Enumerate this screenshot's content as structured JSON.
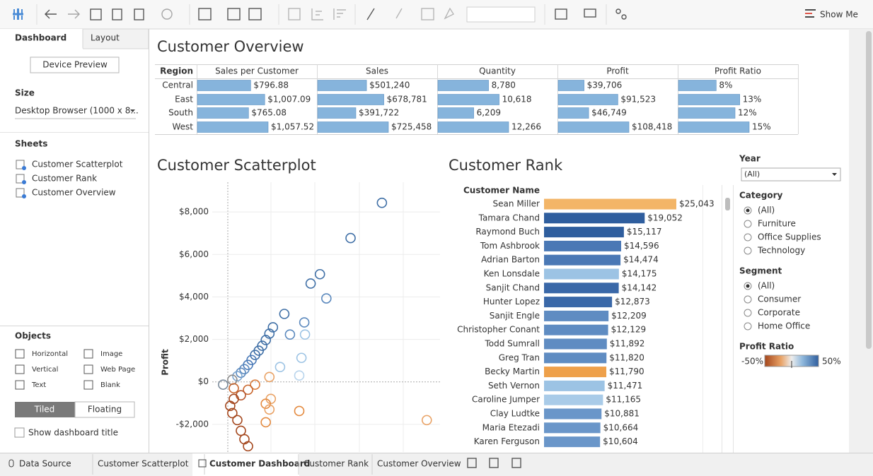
{
  "toolbar": {
    "show_me": "Show Me"
  },
  "sidebar": {
    "tabs": [
      "Dashboard",
      "Layout"
    ],
    "device_preview": "Device Preview",
    "size_label": "Size",
    "size_value": "Desktop Browser (1000 x 8...",
    "sheets_label": "Sheets",
    "sheets": [
      "Customer Scatterplot",
      "Customer Rank",
      "Customer Overview"
    ],
    "objects_label": "Objects",
    "objects": [
      "Horizontal",
      "Image",
      "Vertical",
      "Web Page",
      "Text",
      "Blank"
    ],
    "layout_modes": [
      "Tiled",
      "Floating"
    ],
    "show_title": "Show dashboard title"
  },
  "dashboard": {
    "overview": {
      "title": "Customer Overview",
      "row_header": "Region",
      "categories": [
        "Central",
        "East",
        "South",
        "West"
      ],
      "series": [
        {
          "name": "Sales per Customer",
          "values": [
            796.88,
            1007.09,
            765.08,
            1057.52
          ],
          "value_labels": [
            "$796.88",
            "$1,007.09",
            "$765.08",
            "$1,057.52"
          ]
        },
        {
          "name": "Sales",
          "values": [
            501240,
            678781,
            391722,
            725458
          ],
          "value_labels": [
            "$501,240",
            "$678,781",
            "$391,722",
            "$725,458"
          ]
        },
        {
          "name": "Quantity",
          "values": [
            8780,
            10618,
            6209,
            12266
          ],
          "value_labels": [
            "8,780",
            "10,618",
            "6,209",
            "12,266"
          ]
        },
        {
          "name": "Profit",
          "values": [
            39706,
            91523,
            46749,
            108418
          ],
          "value_labels": [
            "$39,706",
            "$91,523",
            "$46,749",
            "$108,418"
          ]
        },
        {
          "name": "Profit Ratio",
          "values": [
            8,
            13,
            12,
            15
          ],
          "value_labels": [
            "8%",
            "13%",
            "12%",
            "15%"
          ]
        }
      ],
      "color": "#86b4dc"
    },
    "scatterplot": {
      "type": "scatter",
      "title": "Customer Scatterplot",
      "y_label": "Profit",
      "ylim": [
        -3300,
        9400
      ],
      "yticks": [
        {
          "value": -2000,
          "label": "-$2,000"
        },
        {
          "value": 0,
          "label": "$0"
        },
        {
          "value": 2000,
          "label": "$2,000"
        },
        {
          "value": 4000,
          "label": "$4,000"
        },
        {
          "value": 6000,
          "label": "$6,000"
        },
        {
          "value": 8000,
          "label": "$8,000"
        }
      ],
      "xlim": [
        -7800,
        24000
      ],
      "x": [
        17420,
        13870,
        10400,
        9350,
        11130,
        6370,
        8630,
        7010,
        8710,
        5080,
        4680,
        4270,
        3870,
        3470,
        3060,
        2660,
        2260,
        1850,
        1450,
        1050,
        480,
        8310,
        8060,
        5890,
        4680,
        3060,
        2260,
        1450,
        4840,
        4270,
        4680,
        650,
        240,
        480,
        1050,
        4270,
        1450,
        1850,
        2260,
        8060,
        22500,
        -560,
        650
      ],
      "y": [
        8430,
        6770,
        5070,
        4630,
        3930,
        3200,
        2800,
        2230,
        2230,
        2570,
        2270,
        1970,
        1700,
        1470,
        1270,
        1030,
        800,
        600,
        430,
        270,
        100,
        1130,
        300,
        700,
        230,
        -130,
        -370,
        -630,
        -800,
        -1030,
        -1300,
        -800,
        -1130,
        -1470,
        -1800,
        -1900,
        -2300,
        -2700,
        -3030,
        -1370,
        -1800,
        -130,
        -300
      ],
      "colors": [
        "#3f6fa6",
        "#3f6fa6",
        "#3f6fa6",
        "#3f6fa6",
        "#5a88bd",
        "#3f6fa6",
        "#5a88bd",
        "#5a88bd",
        "#9cc3e4",
        "#3f6fa6",
        "#3f6fa6",
        "#3f6fa6",
        "#3f6fa6",
        "#3f6fa6",
        "#3f6fa6",
        "#4a7ab8",
        "#4a7ab8",
        "#5a88bd",
        "#5a88bd",
        "#7aa5d0",
        "#8a8a8a",
        "#9cc3e4",
        "#b8d4ec",
        "#9cc3e4",
        "#e9a265",
        "#d97a3a",
        "#c8652c",
        "#b5542a",
        "#e9a265",
        "#e48a3f",
        "#e9a265",
        "#a4461c",
        "#a4461c",
        "#a4461c",
        "#a4461c",
        "#e48a3f",
        "#a4461c",
        "#a4461c",
        "#a4461c",
        "#e48a3f",
        "#e9a265",
        "#7a8a9a",
        "#c8652c"
      ]
    },
    "rank": {
      "type": "bar",
      "title": "Customer Rank",
      "category_header": "Customer Name",
      "categories": [
        "Sean Miller",
        "Tamara Chand",
        "Raymond Buch",
        "Tom Ashbrook",
        "Adrian Barton",
        "Ken Lonsdale",
        "Sanjit Chand",
        "Hunter Lopez",
        "Sanjit Engle",
        "Christopher Conant",
        "Todd Sumrall",
        "Greg Tran",
        "Becky Martin",
        "Seth Vernon",
        "Caroline Jumper",
        "Clay Ludtke",
        "Maria Etezadi",
        "Karen Ferguson"
      ],
      "values": [
        25043,
        19052,
        15117,
        14596,
        14474,
        14175,
        14142,
        12873,
        12209,
        12129,
        11892,
        11820,
        11790,
        11471,
        11165,
        10881,
        10664,
        10604
      ],
      "value_labels": [
        "$25,043",
        "$19,052",
        "$15,117",
        "$14,596",
        "$14,474",
        "$14,175",
        "$14,142",
        "$12,873",
        "$12,209",
        "$12,129",
        "$11,892",
        "$11,820",
        "$11,790",
        "$11,471",
        "$11,165",
        "$10,881",
        "$10,664",
        "$10,604"
      ],
      "colors": [
        "#f3b567",
        "#2f5e9e",
        "#2f5e9e",
        "#4a78b5",
        "#4a78b5",
        "#9cc3e4",
        "#3a68a8",
        "#3a68a8",
        "#5f8cc2",
        "#5f8cc2",
        "#5f8cc2",
        "#5f8cc2",
        "#eea04a",
        "#9cc3e4",
        "#a9cbe8",
        "#6a96c9",
        "#6a96c9",
        "#6a96c9"
      ]
    },
    "filters": {
      "year_label": "Year",
      "year_value": "(All)",
      "category_label": "Category",
      "category_options": [
        "(All)",
        "Furniture",
        "Office Supplies",
        "Technology"
      ],
      "segment_label": "Segment",
      "segment_options": [
        "(All)",
        "Consumer",
        "Corporate",
        "Home Office"
      ],
      "profit_ratio_label": "Profit Ratio",
      "profit_ratio_min": "-50%",
      "profit_ratio_max": "50%"
    }
  },
  "tabs": [
    "Data Source",
    "Customer Scatterplot",
    "Customer Dashboard",
    "Customer Rank",
    "Customer Overview"
  ]
}
